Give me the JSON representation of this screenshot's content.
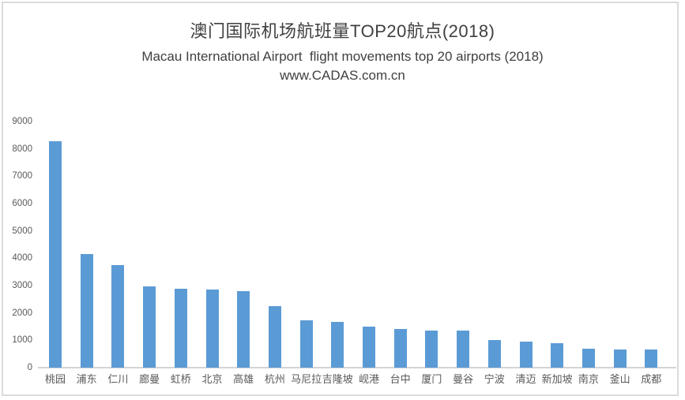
{
  "header": {
    "title": "澳门国际机场航班量TOP20航点(2018)",
    "subtitle": "Macau International Airport  flight movements top 20 airports (2018)",
    "watermark": "www.CADAS.com.cn"
  },
  "chart_data": {
    "type": "bar",
    "title": "澳门国际机场航班量TOP20航点(2018)",
    "subtitle": "Macau International Airport  flight movements top 20 airports (2018)",
    "source": "www.CADAS.com.cn",
    "categories": [
      "桃园",
      "浦东",
      "仁川",
      "廊曼",
      "虹桥",
      "北京",
      "高雄",
      "杭州",
      "马尼拉",
      "吉隆坡",
      "岘港",
      "台中",
      "厦门",
      "曼谷",
      "宁波",
      "清迈",
      "新加坡",
      "南京",
      "釜山",
      "成都"
    ],
    "values": [
      8270,
      4150,
      3740,
      2960,
      2880,
      2850,
      2810,
      2250,
      1740,
      1660,
      1500,
      1410,
      1360,
      1350,
      1000,
      960,
      900,
      700,
      670,
      670
    ],
    "xlabel": "",
    "ylabel": "",
    "ylim": [
      0,
      9000
    ],
    "y_ticks": [
      0,
      1000,
      2000,
      3000,
      4000,
      5000,
      6000,
      7000,
      8000,
      9000
    ],
    "grid": false,
    "legend": false,
    "bar_color": "#5B9BD5",
    "axis_line_color": "#D4D4D4",
    "tick_label_color": "#595959",
    "title_color": "#404040"
  }
}
